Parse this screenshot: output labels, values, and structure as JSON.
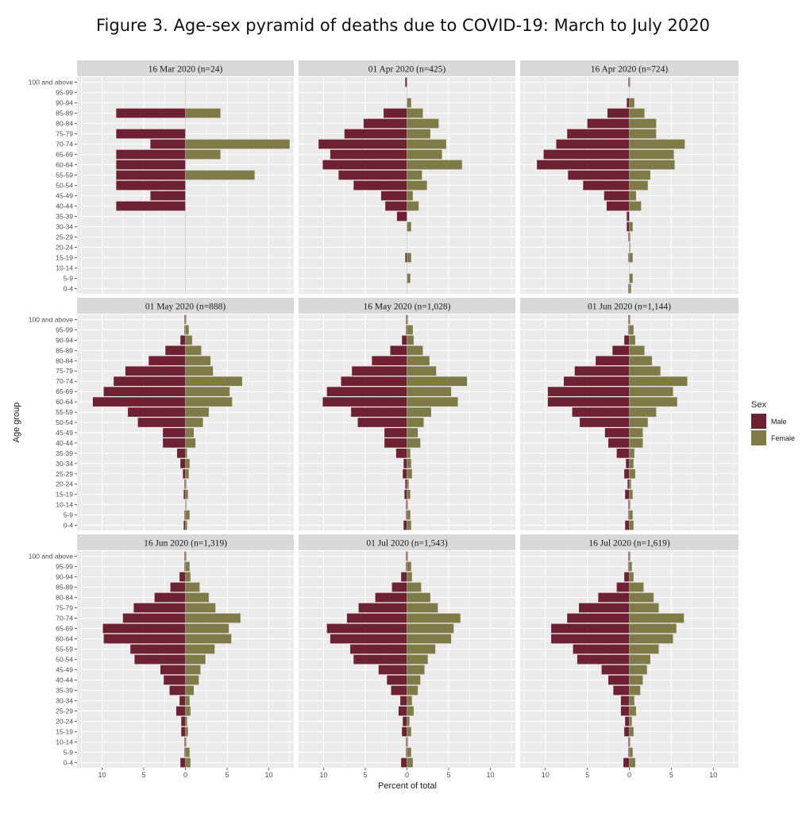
{
  "title": "Figure 3. Age-sex pyramid of deaths due to COVID-19: March to July 2020",
  "chart_data": {
    "type": "bar",
    "orientation": "horizontal",
    "layout": "3x3 faceted population pyramid",
    "xlabel": "Percent of total",
    "ylabel": "Age group",
    "xlim": [
      -13,
      13
    ],
    "x_ticks": [
      -10,
      -5,
      0,
      5,
      10
    ],
    "x_tick_labels": [
      "10",
      "5",
      "0",
      "5",
      "10"
    ],
    "grid": true,
    "legend": {
      "title": "Sex",
      "position": "right",
      "entries": [
        "Male",
        "Female"
      ]
    },
    "colors": {
      "Male": "#6e2132",
      "Female": "#7f7b48",
      "panel_bg": "#ebebeb",
      "strip_bg": "#d9d9d9",
      "grid": "#ffffff"
    },
    "age_groups": [
      "0-4",
      "5-9",
      "10-14",
      "15-19",
      "20-24",
      "25-29",
      "30-34",
      "35-39",
      "40-44",
      "45-49",
      "50-54",
      "55-59",
      "60-64",
      "65-69",
      "70-74",
      "75-79",
      "80-84",
      "85-89",
      "90-94",
      "95-99",
      "100 and above"
    ],
    "panels": [
      {
        "label": "16 Mar 2020 (n=24)",
        "male": [
          0,
          0,
          0,
          0,
          0,
          0,
          0,
          0,
          8.3,
          4.2,
          8.3,
          8.3,
          8.3,
          8.3,
          4.2,
          8.3,
          0,
          8.3,
          0,
          0,
          0
        ],
        "female": [
          0,
          0,
          0,
          0,
          0,
          0,
          0,
          0,
          0,
          0,
          0,
          8.3,
          0,
          4.2,
          12.5,
          0,
          0,
          4.2,
          0,
          0,
          0
        ]
      },
      {
        "label": "01 Apr 2020 (n=425)",
        "male": [
          0,
          0,
          0,
          0.2,
          0,
          0,
          0,
          1.2,
          2.6,
          3.1,
          6.4,
          8.2,
          10.1,
          9.2,
          10.6,
          7.5,
          5.2,
          2.8,
          0,
          0,
          0.2
        ],
        "female": [
          0,
          0.4,
          0,
          0.5,
          0,
          0,
          0.5,
          0,
          1.4,
          0.7,
          2.4,
          1.8,
          6.6,
          4.2,
          4.7,
          2.8,
          3.8,
          1.9,
          0.5,
          0,
          0
        ]
      },
      {
        "label": "16 Apr 2020 (n=724)",
        "male": [
          0.1,
          0,
          0,
          0.1,
          0,
          0.1,
          0.3,
          0.3,
          2.7,
          3.0,
          5.5,
          7.3,
          11.0,
          10.2,
          8.7,
          7.4,
          5.0,
          2.6,
          0.3,
          0,
          0.1
        ],
        "female": [
          0.2,
          0.4,
          0,
          0.4,
          0.1,
          0.1,
          0.4,
          0,
          1.4,
          0.8,
          2.2,
          2.5,
          5.4,
          5.3,
          6.6,
          3.2,
          3.2,
          1.8,
          0.6,
          0,
          0.1
        ]
      },
      {
        "label": "01 May 2020 (n=888)",
        "male": [
          0.2,
          0.1,
          0,
          0.2,
          0.1,
          0.3,
          0.6,
          1.0,
          2.7,
          2.7,
          5.7,
          6.9,
          11.1,
          9.8,
          8.6,
          7.2,
          4.4,
          2.4,
          0.6,
          0.1,
          0.1
        ],
        "female": [
          0.2,
          0.5,
          0.1,
          0.3,
          0.1,
          0.4,
          0.5,
          0.2,
          1.2,
          1.0,
          2.1,
          2.8,
          5.6,
          5.3,
          6.8,
          3.3,
          3.0,
          1.9,
          0.8,
          0.4,
          0.1
        ]
      },
      {
        "label": "16 May 2020 (n=1,028)",
        "male": [
          0.4,
          0.1,
          0.1,
          0.3,
          0.2,
          0.5,
          0.4,
          1.3,
          2.7,
          2.7,
          5.9,
          6.7,
          10.1,
          9.6,
          7.9,
          6.6,
          4.2,
          2.0,
          0.6,
          0.1,
          0.1
        ],
        "female": [
          0.5,
          0.4,
          0.1,
          0.4,
          0.2,
          0.6,
          0.5,
          0.4,
          1.6,
          1.3,
          2.0,
          2.9,
          6.1,
          5.3,
          7.2,
          3.5,
          2.7,
          1.9,
          0.8,
          0.7,
          0.1
        ]
      },
      {
        "label": "01 Jun 2020 (n=1,144)",
        "male": [
          0.5,
          0.1,
          0.1,
          0.5,
          0.2,
          0.6,
          0.4,
          1.5,
          2.5,
          2.9,
          5.9,
          6.8,
          9.7,
          9.7,
          7.8,
          6.5,
          4.0,
          2.0,
          0.6,
          0.1,
          0.1
        ],
        "female": [
          0.5,
          0.4,
          0.1,
          0.4,
          0.2,
          0.7,
          0.5,
          0.6,
          1.6,
          1.6,
          2.2,
          3.2,
          5.7,
          5.2,
          6.9,
          3.7,
          2.7,
          1.8,
          0.7,
          0.5,
          0.1
        ]
      },
      {
        "label": "16 Jun 2020 (n=1,319)",
        "male": [
          0.6,
          0.1,
          0.1,
          0.5,
          0.5,
          1.1,
          0.7,
          1.9,
          2.6,
          3.0,
          6.1,
          6.6,
          9.8,
          9.9,
          7.5,
          6.2,
          3.7,
          1.8,
          0.7,
          0.1,
          0.1
        ],
        "female": [
          0.6,
          0.5,
          0.1,
          0.3,
          0.2,
          0.6,
          0.5,
          1.0,
          1.6,
          1.8,
          2.4,
          3.5,
          5.5,
          5.2,
          6.6,
          3.6,
          2.8,
          1.7,
          0.6,
          0.5,
          0.1
        ]
      },
      {
        "label": "01 Jul 2020 (n=1,543)",
        "male": [
          0.7,
          0.1,
          0.1,
          0.6,
          0.5,
          1.0,
          0.8,
          1.9,
          2.4,
          3.4,
          6.4,
          6.8,
          9.2,
          9.6,
          7.2,
          5.8,
          3.8,
          1.8,
          0.7,
          0.1,
          0.1
        ],
        "female": [
          0.7,
          0.5,
          0.1,
          0.5,
          0.3,
          0.8,
          0.6,
          1.3,
          1.6,
          2.1,
          2.5,
          3.4,
          5.3,
          5.6,
          6.4,
          3.7,
          2.8,
          1.7,
          0.6,
          0.5,
          0.1
        ]
      },
      {
        "label": "16 Jul 2020 (n=1,619)",
        "male": [
          0.7,
          0.1,
          0.1,
          0.6,
          0.5,
          1.0,
          1.0,
          1.9,
          2.5,
          3.3,
          6.2,
          6.7,
          9.3,
          9.3,
          7.4,
          6.0,
          3.7,
          1.5,
          0.6,
          0.1,
          0.1
        ],
        "female": [
          0.7,
          0.4,
          0.1,
          0.5,
          0.3,
          0.8,
          0.6,
          1.3,
          1.6,
          2.1,
          2.5,
          3.5,
          5.2,
          5.6,
          6.5,
          3.5,
          2.9,
          1.7,
          0.5,
          0.3,
          0.1
        ]
      }
    ]
  }
}
